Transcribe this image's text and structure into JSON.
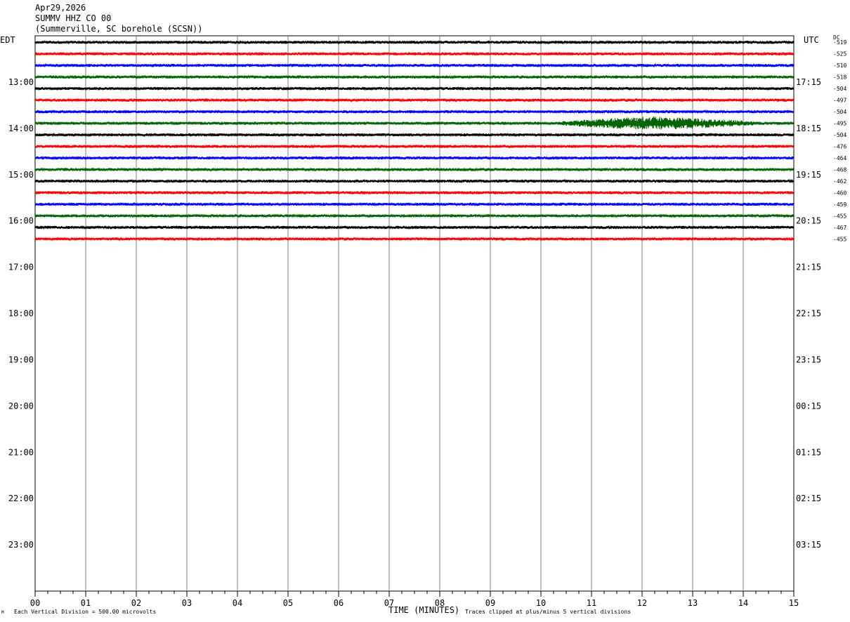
{
  "header": {
    "date": "Apr29,2026",
    "station": "SUMMV HHZ CO 00",
    "location": "(Summerville, SC borehole (SCSN))"
  },
  "left_axis_label": "EDT",
  "right_axis_label": "UTC",
  "dc_label": "DC",
  "footer": {
    "vertical_division": "Each Vertical Division =  500.00 microvolts",
    "clip_note": "Traces clipped at plus/minus 5 vertical divisions",
    "corner_mark": "M"
  },
  "chart_data": {
    "type": "line",
    "title": "",
    "xlabel": "TIME (MINUTES)",
    "ylabel": "",
    "xlim": [
      0,
      15
    ],
    "x_ticks": [
      "00",
      "01",
      "02",
      "03",
      "04",
      "05",
      "06",
      "07",
      "08",
      "09",
      "10",
      "11",
      "12",
      "13",
      "14",
      "15"
    ],
    "row_minutes": 15,
    "total_rows": 48,
    "left_hour_labels": [
      "13:00",
      "14:00",
      "15:00",
      "16:00",
      "17:00",
      "18:00",
      "19:00",
      "20:00",
      "21:00",
      "22:00",
      "23:00"
    ],
    "right_hour_labels": [
      "17:15",
      "18:15",
      "19:15",
      "20:15",
      "21:15",
      "22:15",
      "23:15",
      "00:15",
      "01:15",
      "02:15",
      "03:15"
    ],
    "hour_label_first_row": 4,
    "trace_colors": [
      "#000000",
      "#ff0000",
      "#0000ff",
      "#006400"
    ],
    "traces": [
      {
        "row": 0,
        "dc": "-519",
        "amplitude": 1.0
      },
      {
        "row": 1,
        "dc": "-525",
        "amplitude": 1.0
      },
      {
        "row": 2,
        "dc": "-510",
        "amplitude": 1.0
      },
      {
        "row": 3,
        "dc": "-518",
        "amplitude": 1.0
      },
      {
        "row": 4,
        "dc": "-504",
        "amplitude": 1.0
      },
      {
        "row": 5,
        "dc": "-497",
        "amplitude": 1.0
      },
      {
        "row": 6,
        "dc": "-504",
        "amplitude": 1.0
      },
      {
        "row": 7,
        "dc": "-495",
        "amplitude": 1.0,
        "event": {
          "start_min": 10.3,
          "peak_min": 12.2,
          "end_min": 14.3,
          "peak_amplitude": 4.5
        }
      },
      {
        "row": 8,
        "dc": "-504",
        "amplitude": 1.0
      },
      {
        "row": 9,
        "dc": "-476",
        "amplitude": 1.0
      },
      {
        "row": 10,
        "dc": "-464",
        "amplitude": 1.0
      },
      {
        "row": 11,
        "dc": "-468",
        "amplitude": 1.0
      },
      {
        "row": 12,
        "dc": "-462",
        "amplitude": 1.0
      },
      {
        "row": 13,
        "dc": "-460",
        "amplitude": 1.0
      },
      {
        "row": 14,
        "dc": "-459",
        "amplitude": 1.0
      },
      {
        "row": 15,
        "dc": "-455",
        "amplitude": 1.0
      },
      {
        "row": 16,
        "dc": "-467",
        "amplitude": 1.0
      },
      {
        "row": 17,
        "dc": "-455",
        "amplitude": 1.0
      }
    ]
  }
}
